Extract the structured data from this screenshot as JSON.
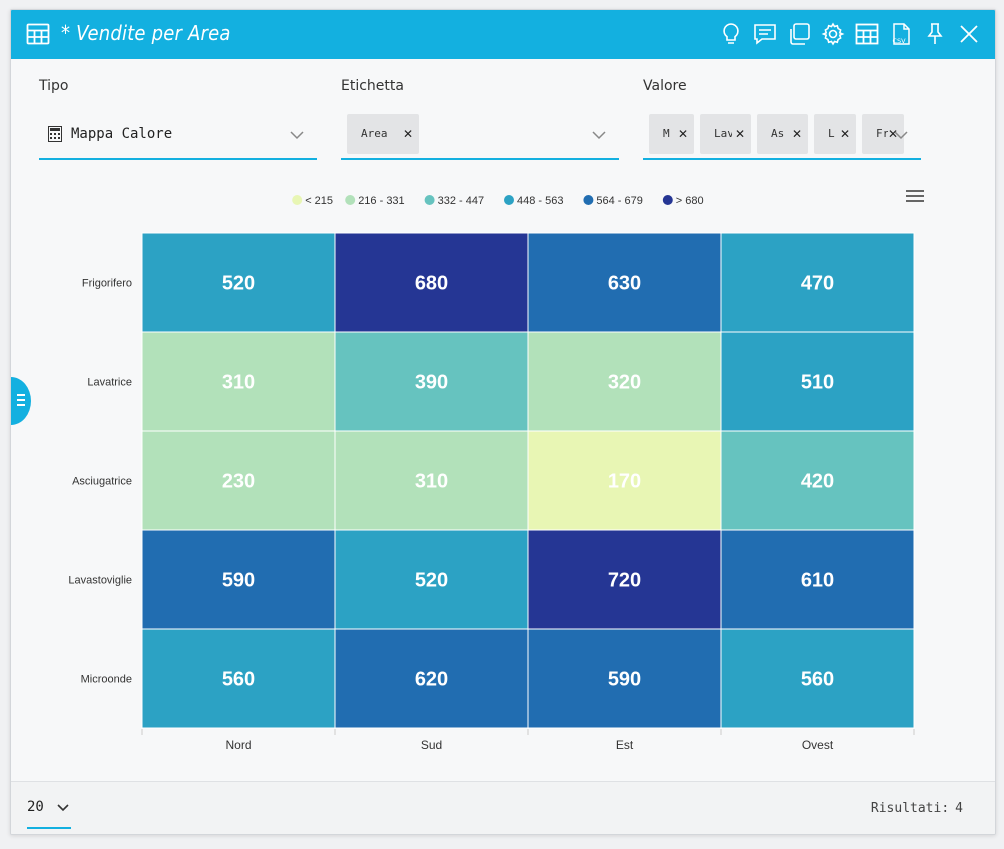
{
  "window": {
    "title": "* Vendite per Area",
    "toolbar_icons": [
      "lightbulb-icon",
      "comment-icon",
      "duplicate-icon",
      "gear-icon",
      "table-icon",
      "csv-icon",
      "pin-icon",
      "close-icon"
    ],
    "csv_label": "CSV"
  },
  "filters": {
    "tipo": {
      "label": "Tipo",
      "value": "Mappa Calore",
      "icon": "calculator-icon"
    },
    "etichetta": {
      "label": "Etichetta",
      "chips": [
        "Area"
      ]
    },
    "valore": {
      "label": "Valore",
      "chips": [
        "M",
        "Lav",
        "As",
        "L",
        "Fr"
      ]
    }
  },
  "footer": {
    "page_size": "20",
    "results_label": "Risultati:",
    "results_count": "4"
  },
  "colors": {
    "accent": "#13b0e0"
  },
  "chart_data": {
    "type": "heatmap",
    "x": [
      "Nord",
      "Sud",
      "Est",
      "Ovest"
    ],
    "y": [
      "Frigorifero",
      "Lavatrice",
      "Asciugatrice",
      "Lavastoviglie",
      "Microonde"
    ],
    "values": [
      [
        520,
        680,
        630,
        470
      ],
      [
        310,
        390,
        320,
        510
      ],
      [
        230,
        310,
        170,
        420
      ],
      [
        590,
        520,
        720,
        610
      ],
      [
        560,
        620,
        590,
        560
      ]
    ],
    "legend": [
      {
        "label": "< 215",
        "color": "#e8f6b4",
        "min": null,
        "max": 215
      },
      {
        "label": "216 - 331",
        "color": "#b2e1ba",
        "min": 216,
        "max": 331
      },
      {
        "label": "332 - 447",
        "color": "#66c3bf",
        "min": 332,
        "max": 447
      },
      {
        "label": "448 - 563",
        "color": "#2ca2c4",
        "min": 448,
        "max": 563
      },
      {
        "label": "564 - 679",
        "color": "#216db1",
        "min": 564,
        "max": 679
      },
      {
        "label": "> 680",
        "color": "#253694",
        "min": 680,
        "max": null
      }
    ],
    "legend_position": "top-center"
  }
}
